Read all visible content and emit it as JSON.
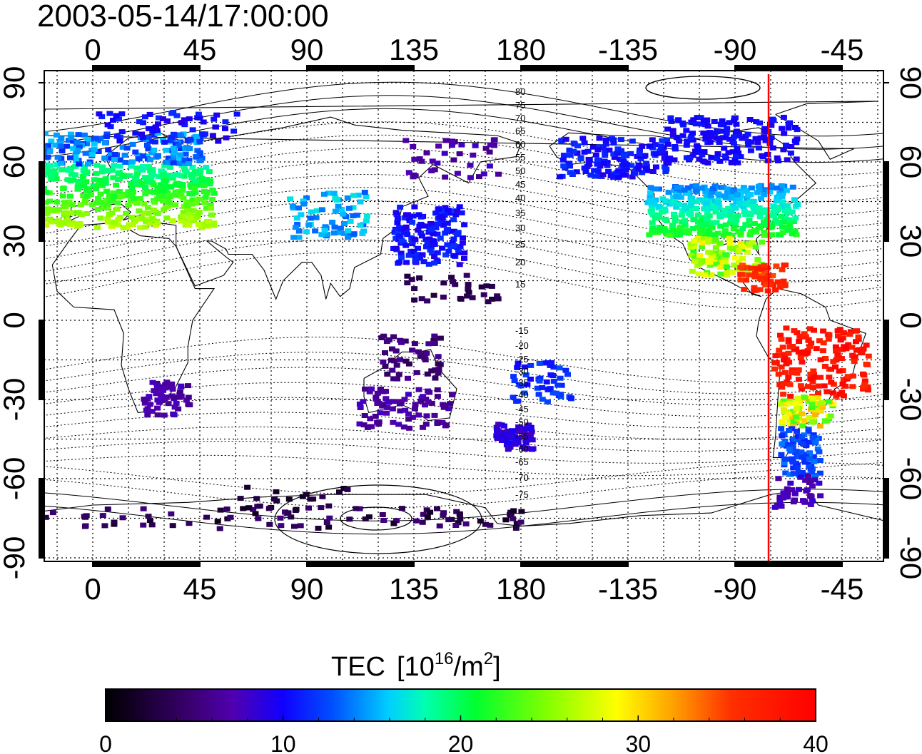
{
  "timestamp": "2003-05-14/17:00:00",
  "lon_ticks": [
    "0",
    "45",
    "90",
    "135",
    "180",
    "-135",
    "-90",
    "-45"
  ],
  "lat_ticks": [
    "90",
    "60",
    "30",
    "0",
    "-30",
    "-60",
    "-90"
  ],
  "contour_labels_north": [
    "80",
    "75",
    "70",
    "65",
    "60",
    "55",
    "50",
    "45",
    "40",
    "35",
    "30",
    "25",
    "20",
    "15"
  ],
  "contour_labels_south": [
    "-15",
    "-20",
    "-25",
    "-30",
    "-35",
    "-40",
    "-45",
    "-50",
    "-55",
    "-60",
    "-65",
    "-70",
    "-75"
  ],
  "colorbar": {
    "title": "TEC",
    "unit_base": "[10",
    "unit_exp": "16",
    "unit_mid": "/m",
    "unit_exp2": "2",
    "unit_end": "]",
    "ticks": [
      "0",
      "10",
      "20",
      "30",
      "40"
    ],
    "range": [
      0,
      40
    ],
    "colormap": [
      "#000000",
      "#3a0070",
      "#5a00c8",
      "#0000ff",
      "#0078ff",
      "#00e8ff",
      "#00ff80",
      "#2cff00",
      "#d8ff00",
      "#ffff00",
      "#ff9000",
      "#ff2000",
      "#ff0000"
    ]
  },
  "terminator_color": "#ff0000",
  "map_extent": {
    "lon_range": [
      -27,
      333
    ],
    "lat_range": [
      -90,
      90
    ]
  }
}
